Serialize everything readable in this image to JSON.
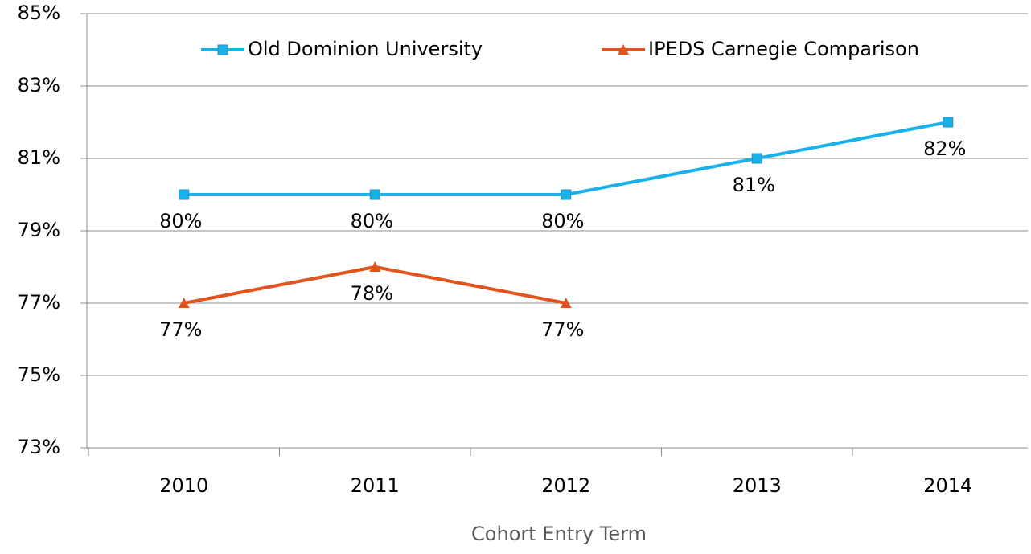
{
  "chart_data": {
    "type": "line",
    "categories": [
      "2010",
      "2011",
      "2012",
      "2013",
      "2014"
    ],
    "x_label": "Cohort Entry Term",
    "ylim": [
      73,
      85
    ],
    "yticks": [
      {
        "value": 73,
        "label": "73%"
      },
      {
        "value": 75,
        "label": "75%"
      },
      {
        "value": 77,
        "label": "77%"
      },
      {
        "value": 79,
        "label": "79%"
      },
      {
        "value": 81,
        "label": "81%"
      },
      {
        "value": 83,
        "label": "83%"
      },
      {
        "value": 85,
        "label": "85%"
      }
    ],
    "grid": true,
    "legend": "top",
    "series": [
      {
        "name": "Old Dominion University",
        "color": "#19b1e9",
        "marker": "square",
        "values": [
          80,
          80,
          80,
          81,
          82
        ],
        "value_labels": [
          "80%",
          "80%",
          "80%",
          "81%",
          "82%"
        ]
      },
      {
        "name": "IPEDS Carnegie Comparison",
        "color": "#e2531d",
        "marker": "triangle",
        "values": [
          77,
          78,
          77,
          null,
          null
        ],
        "value_labels": [
          "77%",
          "78%",
          "77%",
          null,
          null
        ]
      }
    ]
  }
}
